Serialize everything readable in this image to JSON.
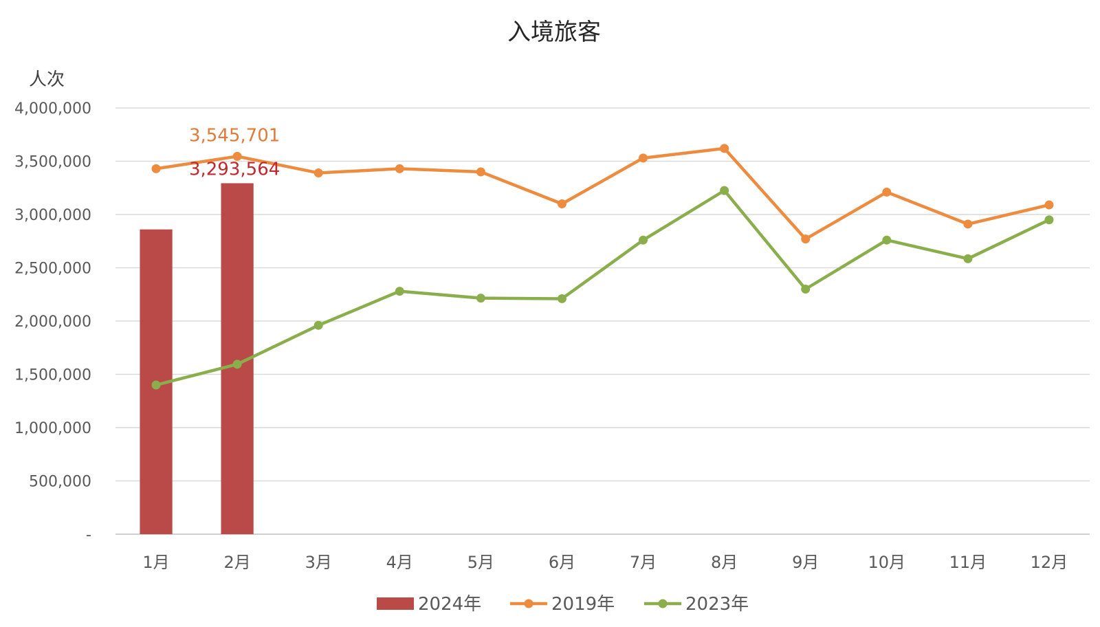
{
  "chart_data": {
    "type": "bar+line",
    "title": "入境旅客",
    "ylabel": "人次",
    "xlabel": "",
    "ylim": [
      0,
      4000000
    ],
    "yticks": [
      0,
      500000,
      1000000,
      1500000,
      2000000,
      2500000,
      3000000,
      3500000,
      4000000
    ],
    "ytick_labels": [
      "-",
      "500,000",
      "1,000,000",
      "1,500,000",
      "2,000,000",
      "2,500,000",
      "3,000,000",
      "3,500,000",
      "4,000,000"
    ],
    "categories": [
      "1月",
      "2月",
      "3月",
      "4月",
      "5月",
      "6月",
      "7月",
      "8月",
      "9月",
      "10月",
      "11月",
      "12月"
    ],
    "grid": true,
    "legend_position": "bottom",
    "series": [
      {
        "name": "2024年",
        "kind": "bar",
        "color": "#B94A48",
        "values": [
          2860000,
          3293564,
          null,
          null,
          null,
          null,
          null,
          null,
          null,
          null,
          null,
          null
        ]
      },
      {
        "name": "2019年",
        "kind": "line",
        "color": "#ED8B3F",
        "values": [
          3430000,
          3545701,
          3390000,
          3430000,
          3400000,
          3100000,
          3530000,
          3620000,
          2770000,
          3210000,
          2910000,
          3090000
        ]
      },
      {
        "name": "2023年",
        "kind": "line",
        "color": "#8BAE4D",
        "values": [
          1400000,
          1595000,
          1960000,
          2280000,
          2215000,
          2210000,
          2760000,
          3225000,
          2300000,
          2760000,
          2585000,
          2950000
        ]
      }
    ],
    "annotations": [
      {
        "series": "2019年",
        "category": "2月",
        "text": "3,545,701",
        "color": "#E07B39"
      },
      {
        "series": "2024年",
        "category": "2月",
        "text": "3,293,564",
        "color": "#C0282D"
      }
    ]
  }
}
